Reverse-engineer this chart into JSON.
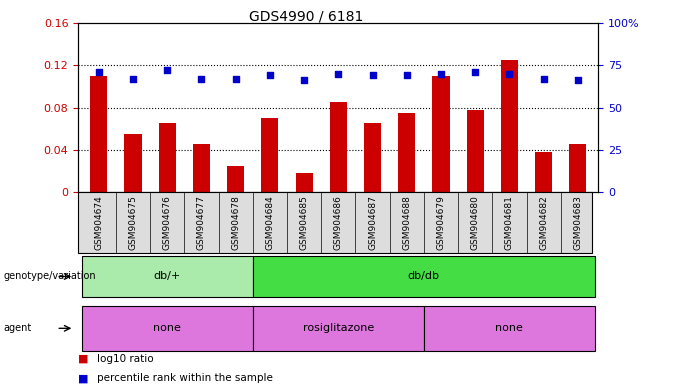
{
  "title": "GDS4990 / 6181",
  "samples": [
    "GSM904674",
    "GSM904675",
    "GSM904676",
    "GSM904677",
    "GSM904678",
    "GSM904684",
    "GSM904685",
    "GSM904686",
    "GSM904687",
    "GSM904688",
    "GSM904679",
    "GSM904680",
    "GSM904681",
    "GSM904682",
    "GSM904683"
  ],
  "log10_ratio": [
    0.11,
    0.055,
    0.065,
    0.045,
    0.025,
    0.07,
    0.018,
    0.085,
    0.065,
    0.075,
    0.11,
    0.078,
    0.125,
    0.038,
    0.045
  ],
  "percentile_rank": [
    71,
    67,
    72,
    67,
    67,
    69,
    66,
    70,
    69,
    69,
    70,
    71,
    70,
    67,
    66
  ],
  "bar_color": "#cc0000",
  "dot_color": "#0000cc",
  "ylim_left": [
    0,
    0.16
  ],
  "ylim_right": [
    0,
    100
  ],
  "yticks_left": [
    0,
    0.04,
    0.08,
    0.12,
    0.16
  ],
  "yticks_right": [
    0,
    25,
    50,
    75,
    100
  ],
  "ytick_labels_left": [
    "0",
    "0.04",
    "0.08",
    "0.12",
    "0.16"
  ],
  "ytick_labels_right": [
    "0",
    "25",
    "50",
    "75",
    "100%"
  ],
  "left_tick_color": "#cc0000",
  "right_tick_color": "#0000cc",
  "genotype_groups": [
    {
      "label": "db/+",
      "start": 0,
      "end": 4,
      "color": "#aaeaaa"
    },
    {
      "label": "db/db",
      "start": 5,
      "end": 14,
      "color": "#44dd44"
    }
  ],
  "agent_groups": [
    {
      "label": "none",
      "start": 0,
      "end": 4,
      "color": "#dd77dd"
    },
    {
      "label": "rosiglitazone",
      "start": 5,
      "end": 9,
      "color": "#dd77dd"
    },
    {
      "label": "none",
      "start": 10,
      "end": 14,
      "color": "#dd77dd"
    }
  ],
  "genotype_label": "genotype/variation",
  "agent_label": "agent",
  "legend_items": [
    {
      "color": "#cc0000",
      "label": "log10 ratio"
    },
    {
      "color": "#0000cc",
      "label": "percentile rank within the sample"
    }
  ],
  "background_color": "#ffffff",
  "plot_bg_color": "#ffffff",
  "bar_width": 0.5,
  "xlabel_bg": "#dddddd"
}
